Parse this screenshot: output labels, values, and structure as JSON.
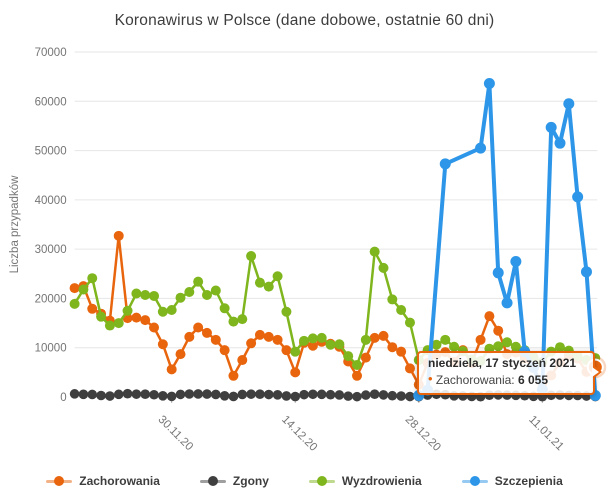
{
  "title": "Koronawirus w Polsce (dane dobowe, ostatnie 60 dni)",
  "y_axis": {
    "label": "Liczba przypadków",
    "tick_labels": [
      "0",
      "10000",
      "20000",
      "30000",
      "40000",
      "50000",
      "60000",
      "70000"
    ],
    "tick_values": [
      0,
      10000,
      20000,
      30000,
      40000,
      50000,
      60000,
      70000
    ]
  },
  "x_axis": {
    "tick_labels": [
      "30.11.20",
      "14.12.20",
      "28.12.20",
      "11.01.21"
    ],
    "tick_day_indexes": [
      11,
      25,
      39,
      53
    ]
  },
  "legend": [
    {
      "label": "Zachorowania",
      "color": "#e8650e"
    },
    {
      "label": "Zgony",
      "color": "#3f3f3f"
    },
    {
      "label": "Wyzdrowienia",
      "color": "#7fb51d"
    },
    {
      "label": "Szczepienia",
      "color": "#2d96e8"
    }
  ],
  "tooltip": {
    "date_label": "niedziela, 17 styczeń 2021",
    "bullet": "•",
    "series_label": "Zachorowania:",
    "value": "6 055"
  },
  "chart_data": {
    "type": "line",
    "title": "Koronawirus w Polsce (dane dobowe, ostatnie 60 dni)",
    "xlabel": "",
    "ylabel": "Liczba przypadków",
    "ylim": [
      0,
      70000
    ],
    "grid": true,
    "legend_position": "bottom",
    "x_dates": [
      "19.11.2020",
      "20.11.2020",
      "21.11.2020",
      "22.11.2020",
      "23.11.2020",
      "24.11.2020",
      "25.11.2020",
      "26.11.2020",
      "27.11.2020",
      "28.11.2020",
      "29.11.2020",
      "30.11.2020",
      "1.12.2020",
      "2.12.2020",
      "3.12.2020",
      "4.12.2020",
      "5.12.2020",
      "6.12.2020",
      "7.12.2020",
      "8.12.2020",
      "9.12.2020",
      "10.12.2020",
      "11.12.2020",
      "12.12.2020",
      "13.12.2020",
      "14.12.2020",
      "15.12.2020",
      "16.12.2020",
      "17.12.2020",
      "18.12.2020",
      "19.12.2020",
      "20.12.2020",
      "21.12.2020",
      "22.12.2020",
      "23.12.2020",
      "24.12.2020",
      "25.12.2020",
      "26.12.2020",
      "27.12.2020",
      "28.12.2020",
      "29.12.2020",
      "30.12.2020",
      "31.12.2020",
      "1.01.2021",
      "2.01.2021",
      "3.01.2021",
      "4.01.2021",
      "5.01.2021",
      "6.01.2021",
      "7.01.2021",
      "8.01.2021",
      "9.01.2021",
      "10.01.2021",
      "11.01.2021",
      "12.01.2021",
      "13.01.2021",
      "14.01.2021",
      "15.01.2021",
      "16.01.2021",
      "17.01.2021"
    ],
    "series": [
      {
        "name": "Zachorowania",
        "color": "#e8650e",
        "line_width": 2.5,
        "dot_radius": 5,
        "values": [
          22100,
          22500,
          17900,
          16900,
          15500,
          32700,
          16000,
          16100,
          15600,
          14100,
          10700,
          5600,
          8700,
          12200,
          14100,
          13000,
          11600,
          9500,
          4300,
          7500,
          10900,
          12600,
          12200,
          11600,
          9500,
          5000,
          11000,
          10400,
          11200,
          10800,
          10200,
          7200,
          4300,
          8000,
          12000,
          12400,
          10100,
          9200,
          5800,
          2500,
          6900,
          8600,
          9100,
          7100,
          9500,
          6900,
          11600,
          16400,
          13450,
          8700,
          9000,
          7800,
          5900,
          2800,
          4400,
          7000,
          8400,
          7800,
          5100,
          6055
        ]
      },
      {
        "name": "Zgony",
        "color": "#3f3f3f",
        "line_width": 2,
        "dot_radius": 4.8,
        "values": [
          637,
          548,
          515,
          303,
          199,
          540,
          674,
          580,
          570,
          458,
          242,
          121,
          526,
          609,
          620,
          598,
          519,
          241,
          111,
          513,
          575,
          572,
          502,
          441,
          214,
          88,
          477,
          553,
          539,
          461,
          409,
          176,
          68,
          389,
          571,
          427,
          259,
          193,
          94,
          48,
          395,
          553,
          473,
          228,
          212,
          106,
          61,
          369,
          427,
          379,
          336,
          255,
          141,
          57,
          347,
          390,
          327,
          306,
          200,
          91
        ]
      },
      {
        "name": "Wyzdrowienia",
        "color": "#7fb51d",
        "line_width": 2.5,
        "dot_radius": 5,
        "values": [
          18900,
          21800,
          24100,
          16300,
          14500,
          15000,
          17500,
          21000,
          20700,
          20500,
          17300,
          17650,
          20150,
          21300,
          23400,
          20700,
          21600,
          18000,
          15300,
          15800,
          28600,
          23200,
          22400,
          24500,
          17300,
          9200,
          11400,
          11900,
          12000,
          10600,
          10700,
          8300,
          6500,
          11600,
          29500,
          26200,
          19800,
          17650,
          15100,
          7500,
          9500,
          10600,
          11600,
          10200,
          9300,
          7600,
          7300,
          9800,
          10300,
          11100,
          10200,
          9500,
          8100,
          7100,
          9200,
          10100,
          9400,
          8300,
          7500,
          7900
        ]
      },
      {
        "name": "Szczepienia",
        "color": "#2d96e8",
        "line_width": 4,
        "dot_radius": 5.5,
        "values": [
          null,
          null,
          null,
          null,
          null,
          null,
          null,
          null,
          null,
          null,
          null,
          null,
          null,
          null,
          null,
          null,
          null,
          null,
          null,
          null,
          null,
          null,
          null,
          null,
          null,
          null,
          null,
          null,
          null,
          null,
          null,
          null,
          null,
          null,
          null,
          null,
          null,
          null,
          null,
          300,
          1400,
          null,
          47300,
          null,
          null,
          null,
          50500,
          63600,
          25200,
          19100,
          27500,
          9200,
          6000,
          1500,
          54700,
          51500,
          59500,
          40600,
          25400,
          300
        ]
      }
    ],
    "hovered_point": {
      "series": "Zachorowania",
      "date": "17.01.2021",
      "value": 6055,
      "day_index": 59
    }
  },
  "layout_colors": {
    "grid": "#e6e6e6",
    "axis_text": "#757575",
    "tick_mark": "#b0b0b0",
    "background": "#ffffff"
  }
}
